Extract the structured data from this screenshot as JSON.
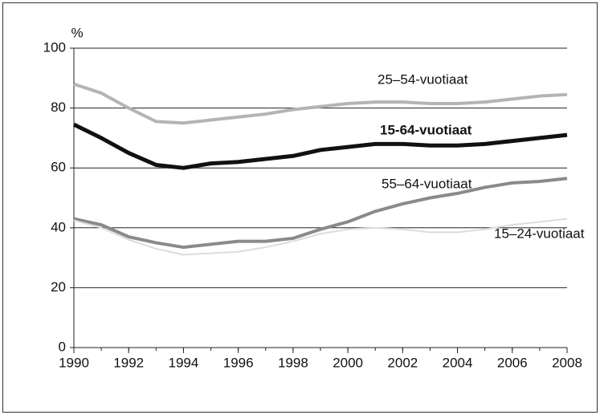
{
  "chart_data": {
    "type": "line",
    "y_label": "%",
    "x": [
      1990,
      1991,
      1992,
      1993,
      1994,
      1995,
      1996,
      1997,
      1998,
      1999,
      2000,
      2001,
      2002,
      2003,
      2004,
      2005,
      2006,
      2007,
      2008
    ],
    "series": [
      {
        "name": "25–54-vuotiaat",
        "color": "#b4b4b4",
        "values": [
          88,
          85,
          80,
          75.5,
          75,
          76,
          77,
          78,
          79.5,
          80.5,
          81.5,
          82,
          82,
          81.5,
          81.5,
          82,
          83,
          84,
          84.5
        ]
      },
      {
        "name": "15-64-vuotiaat",
        "color": "#111111",
        "values": [
          74.5,
          70,
          65,
          61,
          60,
          61.5,
          62,
          63,
          64,
          66,
          67,
          68,
          68,
          67.5,
          67.5,
          68,
          69,
          70,
          71
        ]
      },
      {
        "name": "55–64-vuotiaat",
        "color": "#8a8a8a",
        "values": [
          43,
          41,
          37,
          35,
          33.5,
          34.5,
          35.5,
          35.5,
          36.5,
          39.5,
          42,
          45.5,
          48,
          50,
          51.5,
          53.5,
          55,
          55.5,
          56.5
        ]
      },
      {
        "name": "15–24-vuotiaat",
        "color": "#dcdcdc",
        "values": [
          42.5,
          40,
          36,
          33,
          31,
          31.5,
          32,
          33.5,
          35.5,
          38,
          39.5,
          40,
          39.5,
          38.5,
          38.5,
          39.5,
          41,
          42,
          43
        ]
      }
    ],
    "xlim": [
      1990,
      2008
    ],
    "xticks": [
      1990,
      1992,
      1994,
      1996,
      1998,
      2000,
      2002,
      2004,
      2006,
      2008
    ],
    "ylim": [
      0,
      100
    ],
    "yticks": [
      0,
      20,
      40,
      60,
      80,
      100
    ],
    "grid": true
  }
}
